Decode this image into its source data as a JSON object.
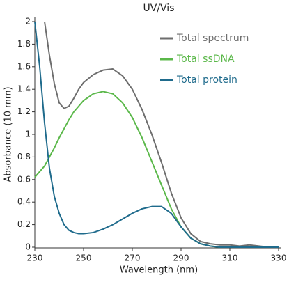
{
  "chart_data": {
    "type": "line",
    "title": "UV/Vis",
    "xlabel": "Wavelength (nm)",
    "ylabel": "Absorbance (10 mm)",
    "x": [
      230,
      232,
      234,
      236,
      238,
      240,
      242,
      244,
      246,
      248,
      250,
      254,
      258,
      262,
      266,
      270,
      274,
      278,
      282,
      286,
      290,
      294,
      298,
      302,
      306,
      310,
      314,
      318,
      322,
      326,
      330
    ],
    "series": [
      {
        "name": "Total spectrum",
        "color": "#6e6e6e",
        "values": [
          null,
          null,
          2.0,
          1.7,
          1.45,
          1.28,
          1.23,
          1.25,
          1.32,
          1.4,
          1.46,
          1.53,
          1.57,
          1.58,
          1.52,
          1.4,
          1.22,
          1.0,
          0.75,
          0.48,
          0.26,
          0.12,
          0.05,
          0.03,
          0.02,
          0.02,
          0.01,
          0.02,
          0.01,
          0.0,
          0.0
        ]
      },
      {
        "name": "Total ssDNA",
        "color": "#5bb84a",
        "values": [
          0.62,
          0.67,
          0.72,
          0.8,
          0.88,
          0.97,
          1.05,
          1.13,
          1.2,
          1.25,
          1.3,
          1.36,
          1.38,
          1.36,
          1.28,
          1.15,
          0.97,
          0.76,
          0.55,
          0.34,
          0.18,
          0.08,
          0.03,
          0.01,
          0,
          0,
          0,
          0,
          0,
          0,
          0
        ]
      },
      {
        "name": "Total protein",
        "color": "#1f6b8c",
        "values": [
          2.0,
          1.6,
          1.1,
          0.7,
          0.45,
          0.3,
          0.2,
          0.15,
          0.13,
          0.12,
          0.12,
          0.13,
          0.16,
          0.2,
          0.25,
          0.3,
          0.34,
          0.36,
          0.36,
          0.3,
          0.18,
          0.08,
          0.03,
          0.01,
          0,
          0,
          0,
          0,
          0,
          0,
          0
        ]
      }
    ],
    "xlim": [
      230,
      330
    ],
    "xticks": [
      230,
      250,
      270,
      290,
      310,
      330
    ],
    "ylim": [
      0,
      2
    ],
    "yticks": [
      0,
      0.2,
      0.4,
      0.6,
      0.8,
      1,
      1.2,
      1.4,
      1.6,
      1.8,
      2
    ],
    "legend": "upper right"
  }
}
